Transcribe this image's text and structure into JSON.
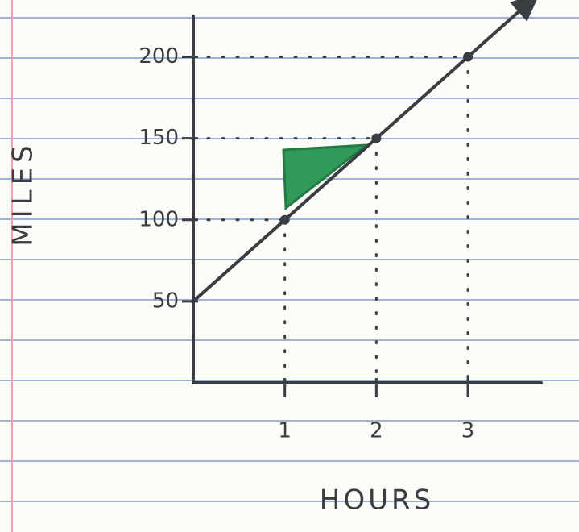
{
  "chart_data": {
    "type": "line",
    "x_label": "HOURS",
    "y_label": "MILES",
    "x": [
      0,
      1,
      2,
      3
    ],
    "values": [
      50,
      100,
      150,
      200
    ],
    "color": "#3a3d42",
    "xlim": [
      0,
      3.8
    ],
    "ylim": [
      0,
      225
    ],
    "xticks": [
      1,
      2,
      3
    ],
    "yticks": [
      50,
      100,
      150,
      200
    ],
    "guides": true
  }
}
